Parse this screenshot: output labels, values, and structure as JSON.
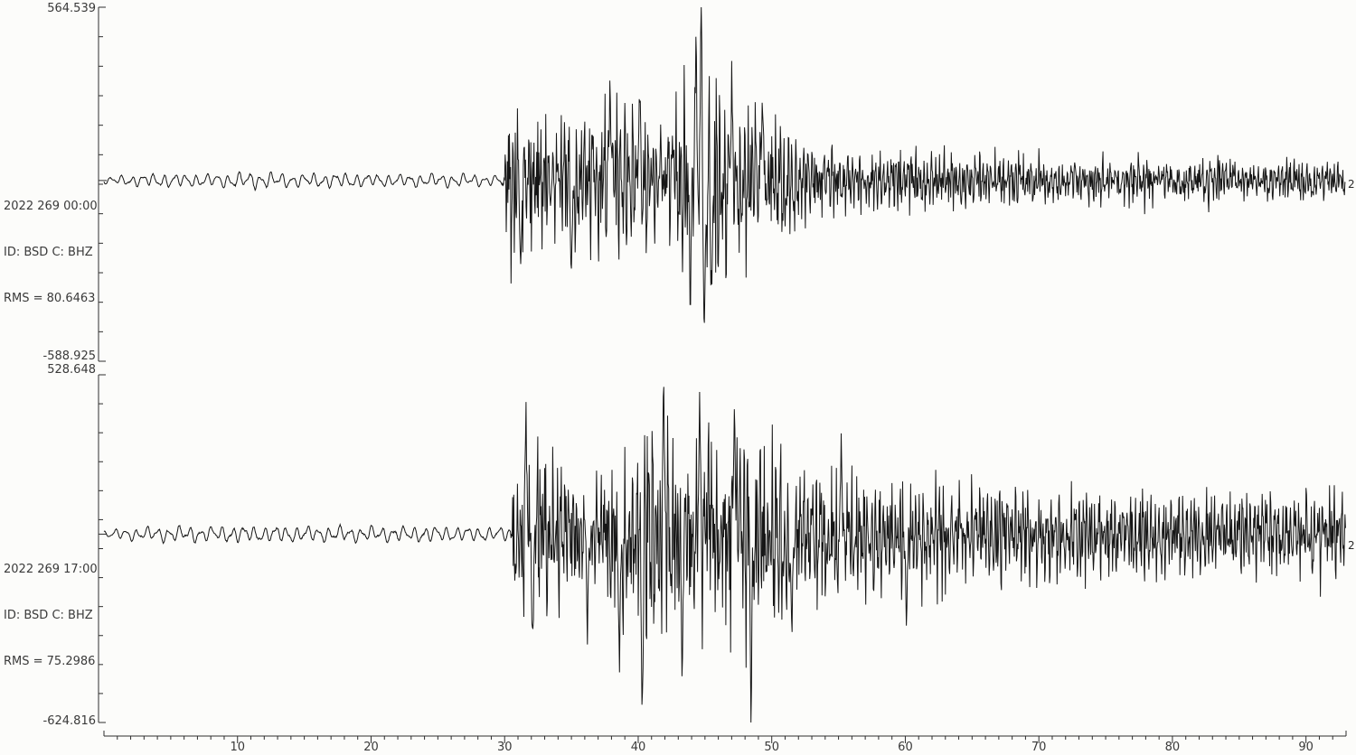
{
  "colors": {
    "background": "#fcfcfa",
    "trace": "#161616",
    "axis": "#2e2e2e",
    "text": "#3a3a3a"
  },
  "chart_data": {
    "type": "line",
    "subtype": "seismogram",
    "title": "",
    "xlabel": "",
    "ylabel": "",
    "xlim": [
      0,
      93
    ],
    "x_ticks": [
      10,
      20,
      30,
      40,
      50,
      60,
      70,
      80,
      90
    ],
    "x_tick_labels": [
      "10",
      "20",
      "30",
      "40",
      "50",
      "60",
      "70",
      "80",
      "90"
    ],
    "x_minor_tick_step": 1,
    "x_major_tick_step": 10,
    "grid": false,
    "legend": false,
    "traces": [
      {
        "start_label": "2022 269 00:00",
        "id_label": "ID: BSD C: BHZ",
        "rms_label": "RMS = 80.6463",
        "rms": 80.6463,
        "ymax_label": "564.539",
        "ymin_label": "-588.925",
        "ylim": [
          -588.925,
          564.539
        ],
        "right_clipped_label": "2",
        "event_onset_min": 29.9,
        "peak_time_min": 44.8,
        "seed": 42,
        "envelope": [
          [
            0,
            10
          ],
          [
            1.5,
            16
          ],
          [
            3,
            20
          ],
          [
            5,
            22
          ],
          [
            8,
            20
          ],
          [
            10,
            26
          ],
          [
            11,
            30
          ],
          [
            12,
            26
          ],
          [
            14,
            21
          ],
          [
            16,
            22
          ],
          [
            18,
            24
          ],
          [
            20,
            20
          ],
          [
            22,
            19
          ],
          [
            24,
            21
          ],
          [
            26,
            22
          ],
          [
            28,
            19
          ],
          [
            29.6,
            16
          ],
          [
            29.95,
            40
          ],
          [
            30.3,
            250
          ],
          [
            31,
            295
          ],
          [
            31.6,
            275
          ],
          [
            32.2,
            255
          ],
          [
            33,
            235
          ],
          [
            34,
            205
          ],
          [
            35,
            235
          ],
          [
            36,
            215
          ],
          [
            37,
            245
          ],
          [
            38,
            260
          ],
          [
            38.6,
            265
          ],
          [
            39.3,
            235
          ],
          [
            40,
            220
          ],
          [
            40.6,
            245
          ],
          [
            41.2,
            200
          ],
          [
            42,
            185
          ],
          [
            43,
            235
          ],
          [
            43.8,
            340
          ],
          [
            44.4,
            450
          ],
          [
            44.8,
            490
          ],
          [
            45.2,
            445
          ],
          [
            45.8,
            365
          ],
          [
            46.4,
            315
          ],
          [
            47,
            295
          ],
          [
            47.7,
            265
          ],
          [
            48.4,
            245
          ],
          [
            49,
            228
          ],
          [
            50,
            208
          ],
          [
            51,
            185
          ],
          [
            52,
            155
          ],
          [
            53,
            138
          ],
          [
            54,
            122
          ],
          [
            55,
            115
          ],
          [
            56.5,
            106
          ],
          [
            58,
            100
          ],
          [
            60,
            96
          ],
          [
            62,
            90
          ],
          [
            64,
            95
          ],
          [
            66,
            88
          ],
          [
            68,
            84
          ],
          [
            70,
            82
          ],
          [
            72,
            78
          ],
          [
            74,
            82
          ],
          [
            76,
            75
          ],
          [
            77.5,
            84
          ],
          [
            79,
            74
          ],
          [
            80.5,
            72
          ],
          [
            82,
            82
          ],
          [
            83.3,
            95
          ],
          [
            84.5,
            78
          ],
          [
            86,
            72
          ],
          [
            87.5,
            76
          ],
          [
            89,
            78
          ],
          [
            90.5,
            70
          ],
          [
            92,
            74
          ],
          [
            93,
            64
          ]
        ],
        "spikes": [
          [
            44.72,
            564
          ],
          [
            44.95,
            -588
          ],
          [
            44.3,
            470
          ],
          [
            43.9,
            -420
          ],
          [
            45.5,
            -410
          ],
          [
            31.2,
            -345
          ],
          [
            35.0,
            -325
          ],
          [
            37.9,
            330
          ],
          [
            40.1,
            325
          ],
          [
            47.0,
            305
          ],
          [
            49.3,
            285
          ]
        ]
      },
      {
        "start_label": "2022 269 17:00",
        "id_label": "ID: BSD C: BHZ",
        "rms_label": "RMS = 75.2986",
        "rms": 75.2986,
        "ymax_label": "528.648",
        "ymin_label": "-624.816",
        "ylim": [
          -624.816,
          528.648
        ],
        "right_clipped_label": "2",
        "event_onset_min": 30.5,
        "peak_time_min": 42.0,
        "seed": 1337,
        "envelope": [
          [
            0,
            12
          ],
          [
            2,
            20
          ],
          [
            4,
            24
          ],
          [
            6,
            26
          ],
          [
            8,
            24
          ],
          [
            10,
            28
          ],
          [
            12,
            25
          ],
          [
            14,
            27
          ],
          [
            16,
            24
          ],
          [
            18,
            26
          ],
          [
            20,
            25
          ],
          [
            22,
            24
          ],
          [
            24,
            26
          ],
          [
            26,
            24
          ],
          [
            28,
            23
          ],
          [
            29.8,
            21
          ],
          [
            30.45,
            30
          ],
          [
            30.8,
            270
          ],
          [
            31.3,
            335
          ],
          [
            31.9,
            365
          ],
          [
            32.4,
            335
          ],
          [
            33,
            305
          ],
          [
            33.8,
            262
          ],
          [
            34.6,
            215
          ],
          [
            35.5,
            175
          ],
          [
            36.5,
            168
          ],
          [
            37.3,
            198
          ],
          [
            38,
            240
          ],
          [
            39,
            285
          ],
          [
            40,
            335
          ],
          [
            40.5,
            385
          ],
          [
            41.1,
            360
          ],
          [
            41.8,
            395
          ],
          [
            42.4,
            415
          ],
          [
            43,
            375
          ],
          [
            43.8,
            335
          ],
          [
            44.6,
            350
          ],
          [
            45.4,
            325
          ],
          [
            46.2,
            315
          ],
          [
            47,
            335
          ],
          [
            47.8,
            372
          ],
          [
            48.5,
            392
          ],
          [
            49.2,
            335
          ],
          [
            50,
            305
          ],
          [
            51,
            285
          ],
          [
            52,
            268
          ],
          [
            53,
            248
          ],
          [
            54,
            238
          ],
          [
            55,
            228
          ],
          [
            56,
            212
          ],
          [
            57.5,
            202
          ],
          [
            59,
            196
          ],
          [
            60.5,
            192
          ],
          [
            62,
            184
          ],
          [
            63.5,
            177
          ],
          [
            65,
            172
          ],
          [
            66.5,
            164
          ],
          [
            68,
            160
          ],
          [
            69.5,
            167
          ],
          [
            71,
            154
          ],
          [
            72.5,
            150
          ],
          [
            74,
            157
          ],
          [
            75.5,
            152
          ],
          [
            77,
            147
          ],
          [
            78.5,
            154
          ],
          [
            80,
            144
          ],
          [
            81.5,
            150
          ],
          [
            83,
            140
          ],
          [
            84.5,
            146
          ],
          [
            86,
            138
          ],
          [
            87.5,
            144
          ],
          [
            89,
            134
          ],
          [
            90.5,
            142
          ],
          [
            92,
            147
          ],
          [
            93,
            130
          ]
        ],
        "spikes": [
          [
            40.3,
            -624
          ],
          [
            41.9,
            528
          ],
          [
            48.45,
            -624
          ],
          [
            31.6,
            415
          ],
          [
            32.1,
            -425
          ],
          [
            36.2,
            -320
          ],
          [
            38.6,
            -440
          ],
          [
            43.3,
            -470
          ],
          [
            44.6,
            455
          ],
          [
            47.2,
            425
          ],
          [
            51.5,
            -370
          ],
          [
            55.2,
            320
          ],
          [
            60.1,
            -295
          ]
        ]
      }
    ]
  }
}
